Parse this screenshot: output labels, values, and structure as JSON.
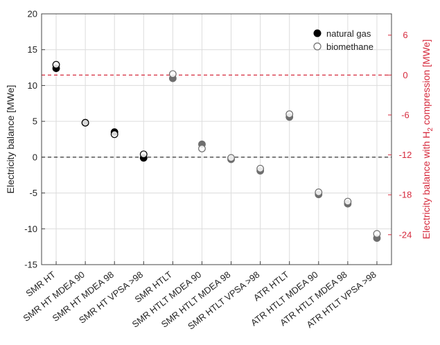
{
  "chart_data": {
    "type": "scatter",
    "categories": [
      "SMR HT",
      "SMR HT MDEA 90",
      "SMR HT MDEA 98",
      "SMR HT VPSA >98",
      "SMR HTLT",
      "SMR HTLT MDEA 90",
      "SMR HTLT MDEA 98",
      "SMR HTLT VPSA >98",
      "ATR HTLT",
      "ATR HTLT MDEA 90",
      "ATR HTLT MDEA 98",
      "ATR HTLT VPSA >98"
    ],
    "series": [
      {
        "name": "natural gas",
        "marker": "filled",
        "values": [
          12.4,
          4.8,
          3.5,
          -0.1,
          11.0,
          1.8,
          -0.3,
          -1.9,
          5.6,
          -5.2,
          -6.5,
          -11.3
        ]
      },
      {
        "name": "biomethane",
        "marker": "open",
        "values": [
          12.9,
          4.8,
          3.2,
          0.4,
          11.6,
          1.2,
          -0.1,
          -1.6,
          6.0,
          -4.9,
          -6.2,
          -10.7
        ]
      }
    ],
    "ylabel": "Electricity balance [MWe]",
    "ylim": [
      -15,
      20
    ],
    "yticks": [
      -15,
      -10,
      -5,
      0,
      5,
      10,
      15,
      20
    ],
    "y2label_parts": {
      "base": "Electricity balance with H",
      "sub": "2",
      "rest": " compression [MWe]"
    },
    "y2lim": [
      -28.5,
      9.2
    ],
    "y2ticks": [
      -24,
      -18,
      -12,
      -6,
      0,
      6
    ],
    "reference_lines": [
      {
        "axis": "left",
        "value": 0,
        "style": "dashed",
        "color": "#333333"
      },
      {
        "axis": "right",
        "value": 0,
        "style": "dashed",
        "color": "#d62a3d"
      }
    ],
    "legend_position": "top-right",
    "grid": true,
    "colors": {
      "right_axis": "#d62a3d",
      "smr_ht_marker": "#000000",
      "other_marker": "#6e6e6e"
    }
  }
}
